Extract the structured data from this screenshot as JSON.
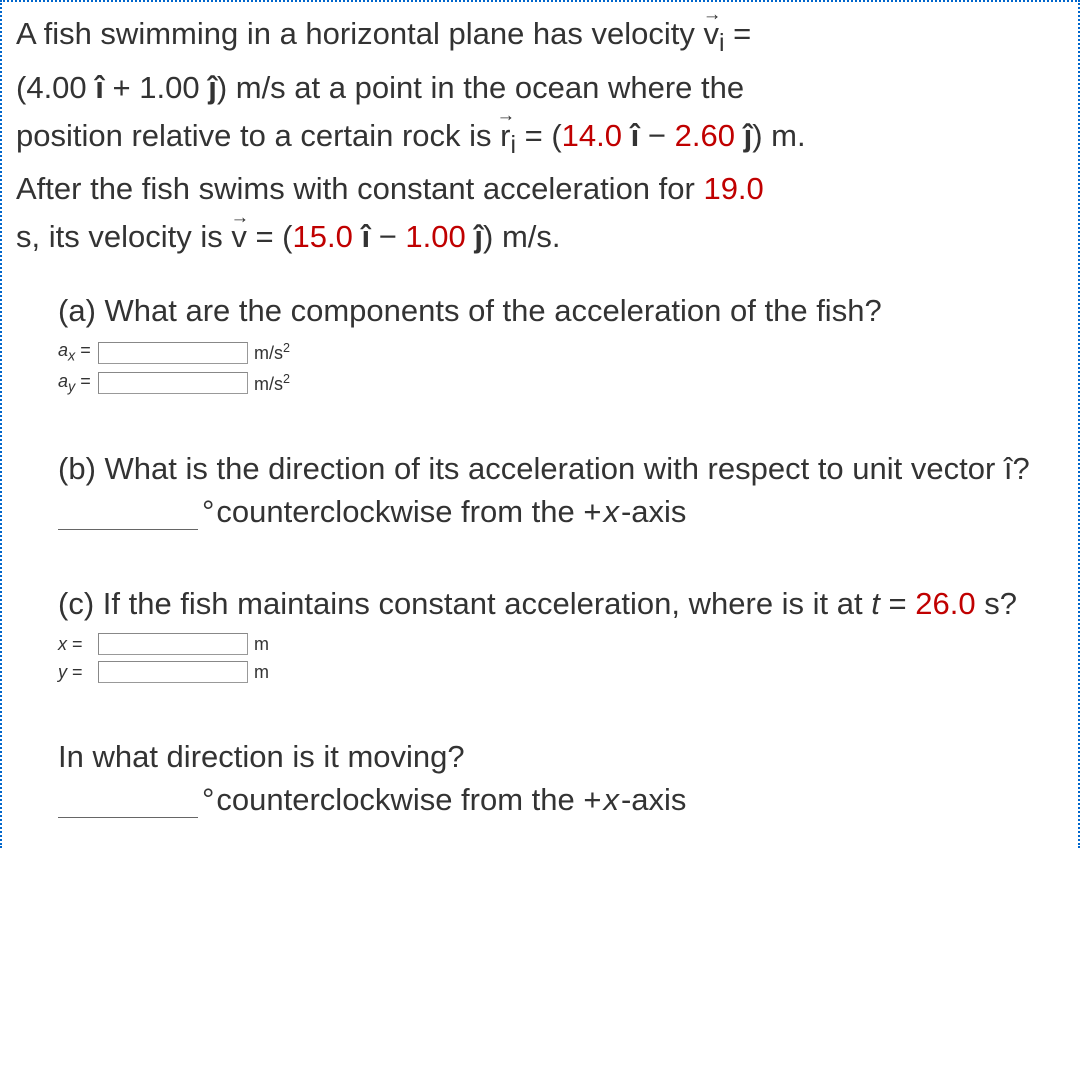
{
  "problem": {
    "line1_a": "A fish swimming in a horizontal plane has velocity ",
    "vi_sym": "v",
    "vi_sub": "i",
    "line1_b": " =",
    "line2_a": "(4.00 ",
    "ihat": "î",
    "line2_b": " + 1.00 ",
    "jhat": "ĵ",
    "line2_c": ") m/s at a point in the ocean where the",
    "line3_a": "position relative to a certain rock is ",
    "ri_sym": "r",
    "ri_sub": "i",
    "line3_b": " = (",
    "rx": "14.0",
    "line3_c": " ",
    "line3_d": " − ",
    "ry": "2.60",
    "line3_e": " ",
    "line3_f": ") m.",
    "line4_a": "After the fish swims with constant acceleration for ",
    "t1": "19.0",
    "line4_b": "",
    "line5_a": "s, its velocity is ",
    "v_sym": "v",
    "line5_b": " = (",
    "vx": "15.0",
    "line5_c": " ",
    "line5_d": " − ",
    "vy": "1.00",
    "line5_e": " ",
    "line5_f": ") m/s."
  },
  "partA": {
    "q": "(a) What are the components of the acceleration of the fish?",
    "ax_label_a": "a",
    "ax_label_sub": "x",
    "eq": " = ",
    "ax_unit": "m/s",
    "sq": "2",
    "ay_label_a": "a",
    "ay_label_sub": "y",
    "ay_unit": "m/s"
  },
  "partB": {
    "q": "(b) What is the direction of its acceleration with respect to unit vector î?",
    "deg": "°",
    "rest": " counterclockwise from the +",
    "x": "x",
    "axis": "-axis"
  },
  "partC": {
    "q_a": "(c) If the fish maintains constant acceleration, where is it at ",
    "t": "t",
    "q_b": " = ",
    "tval": "26.0",
    "q_c": " s?",
    "x_label": "x",
    "eq": " = ",
    "x_unit": "m",
    "y_label": "y",
    "y_unit": "m"
  },
  "partD": {
    "q": "In what direction is it moving?",
    "deg": "°",
    "rest": " counterclockwise from the +",
    "x": "x",
    "axis": "-axis"
  }
}
